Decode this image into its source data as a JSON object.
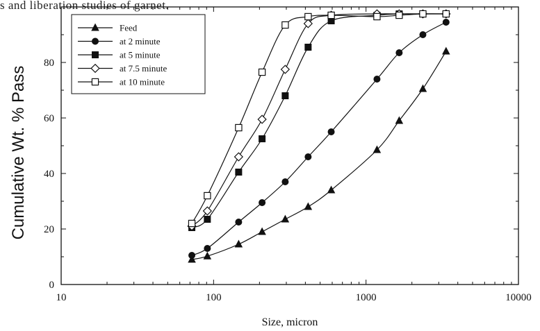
{
  "caption_fragment": "s and liberation studies of garnet.",
  "chart_data": {
    "type": "line",
    "title": "",
    "xlabel": "Size, micron",
    "ylabel": "Cumulative Wt. % Pass",
    "x_scale": "log",
    "xlim": [
      10,
      10000
    ],
    "ylim": [
      0,
      100
    ],
    "x_ticks": [
      10,
      100,
      1000,
      10000
    ],
    "x_tick_labels": [
      "10",
      "100",
      "1000",
      "10000"
    ],
    "y_ticks": [
      0,
      20,
      40,
      60,
      80
    ],
    "y_tick_labels": [
      "0",
      "20",
      "40",
      "60",
      "80"
    ],
    "grid": false,
    "legend_position": "top-left",
    "series": [
      {
        "name": "Feed",
        "marker": "triangle-filled",
        "x": [
          72,
          91,
          146,
          208,
          295,
          417,
          591,
          1180,
          1650,
          2360,
          3350
        ],
        "y": [
          9,
          10.2,
          14.5,
          19,
          23.5,
          28,
          34,
          48.5,
          59,
          70.5,
          84
        ]
      },
      {
        "name": "at 2 minute",
        "marker": "circle-filled",
        "x": [
          72,
          91,
          146,
          208,
          295,
          417,
          591,
          1180,
          1650,
          2360,
          3350
        ],
        "y": [
          10.5,
          13,
          22.5,
          29.5,
          37,
          46,
          55,
          74,
          83.5,
          90,
          94.5
        ]
      },
      {
        "name": "at 5 minute",
        "marker": "square-filled",
        "x": [
          72,
          91,
          146,
          208,
          295,
          417,
          591,
          1180,
          1650,
          2360,
          3350
        ],
        "y": [
          20.5,
          23.5,
          40.5,
          52.5,
          68,
          85.5,
          95,
          97,
          97.5,
          97.5,
          97.5
        ]
      },
      {
        "name": "at 7.5 minute",
        "marker": "diamond-open",
        "x": [
          72,
          91,
          146,
          208,
          295,
          417,
          591,
          1180,
          1650,
          2360,
          3350
        ],
        "y": [
          21,
          26.5,
          46,
          59.5,
          77.5,
          94,
          97,
          97.5,
          97.5,
          97.5,
          97.5
        ]
      },
      {
        "name": "at 10 minute",
        "marker": "square-open",
        "x": [
          72,
          91,
          146,
          208,
          295,
          417,
          591,
          1180,
          1650,
          2360,
          3350
        ],
        "y": [
          22,
          32,
          56.5,
          76.5,
          93.5,
          96.5,
          97,
          96.5,
          97,
          97.5,
          97.5
        ]
      }
    ]
  }
}
